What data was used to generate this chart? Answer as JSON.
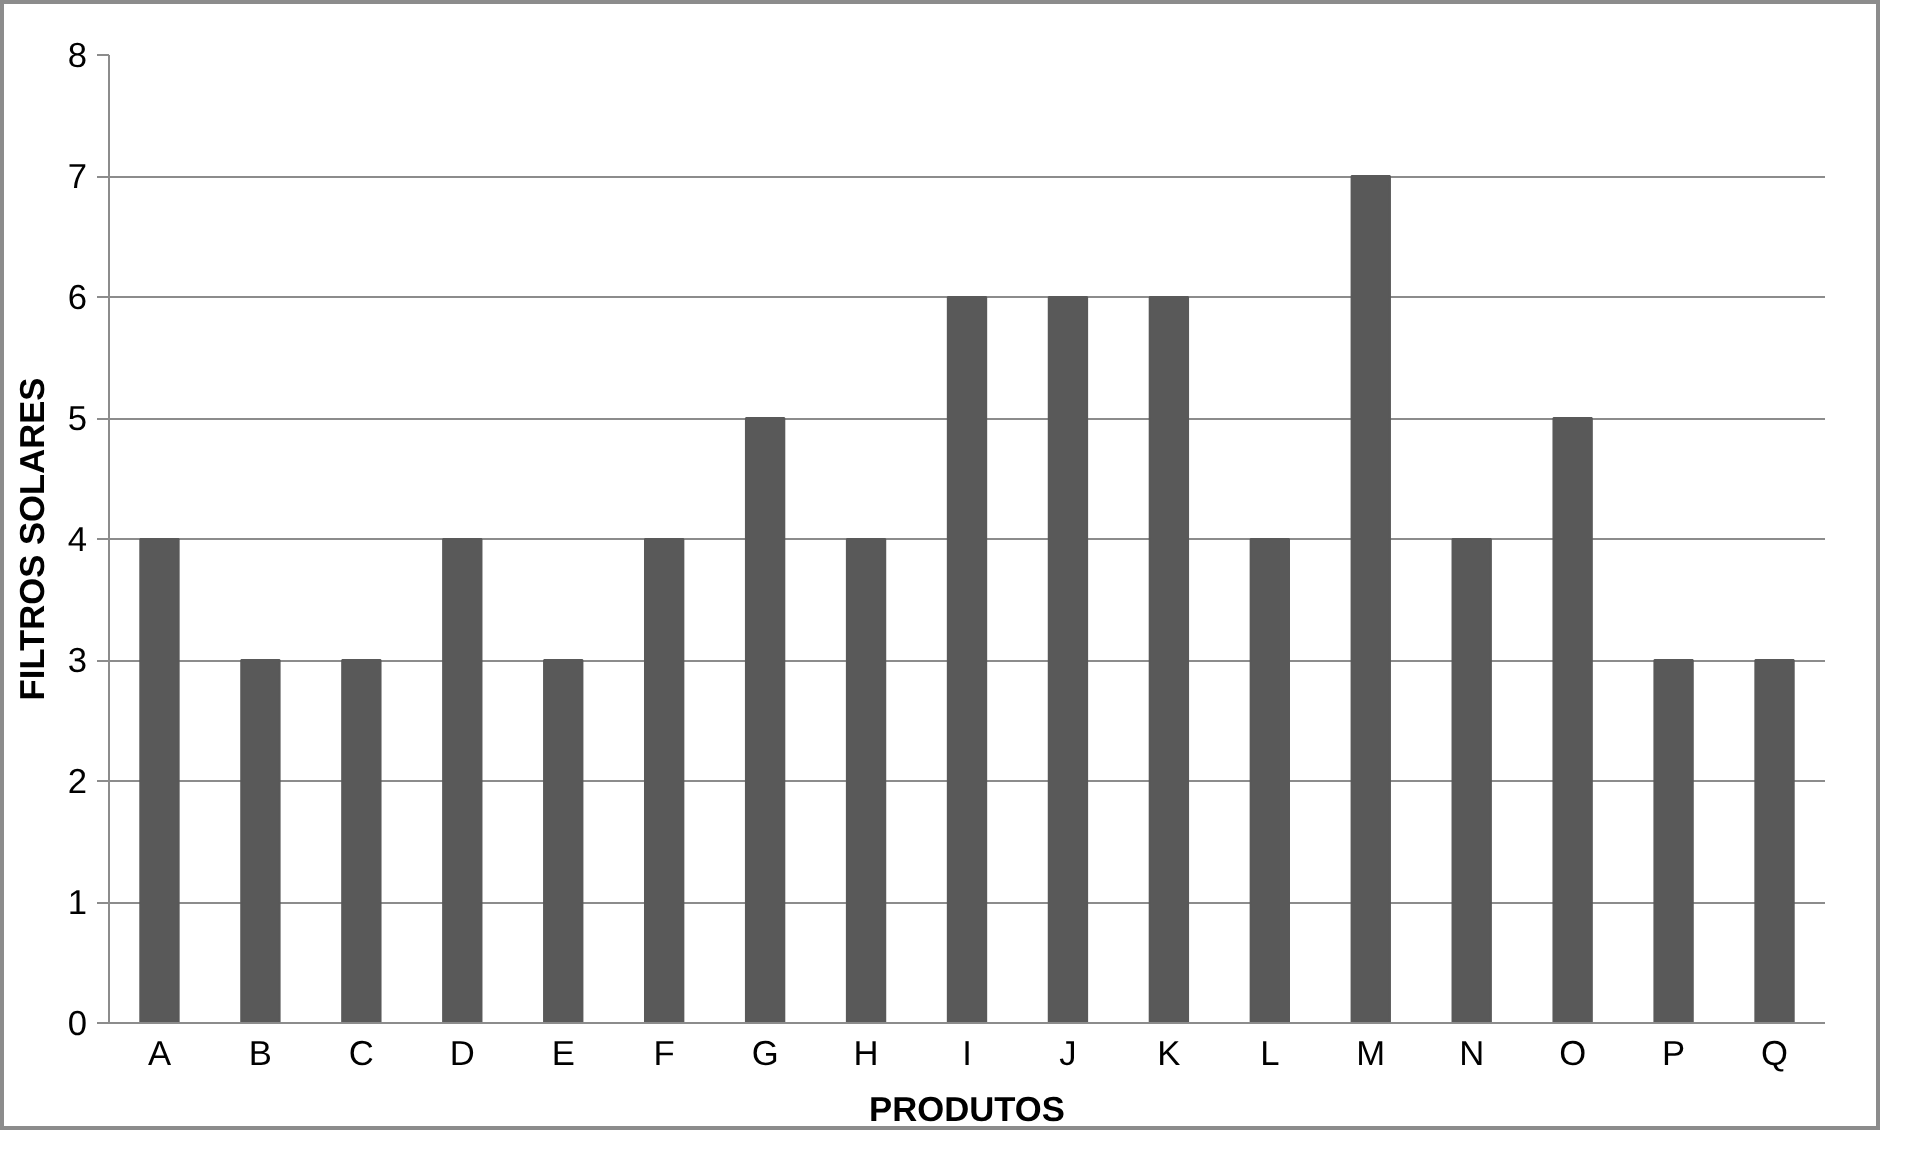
{
  "chart_data": {
    "type": "bar",
    "xlabel": "PRODUTOS",
    "ylabel": "FILTROS SOLARES",
    "categories": [
      "A",
      "B",
      "C",
      "D",
      "E",
      "F",
      "G",
      "H",
      "I",
      "J",
      "K",
      "L",
      "M",
      "N",
      "O",
      "P",
      "Q"
    ],
    "values": [
      4,
      3,
      3,
      4,
      3,
      4,
      5,
      4,
      6,
      6,
      6,
      4,
      7,
      4,
      5,
      3,
      3
    ],
    "color": "#595959",
    "ylim": [
      0,
      8
    ],
    "yticks": [
      0,
      1,
      2,
      3,
      4,
      5,
      6,
      7,
      8
    ],
    "grid": "y"
  }
}
